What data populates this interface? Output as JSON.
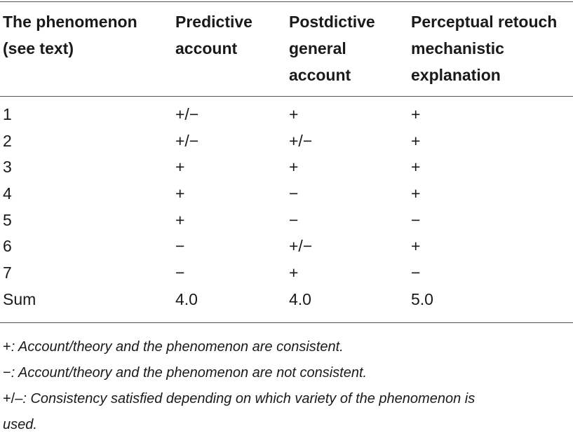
{
  "table": {
    "headers": [
      [
        "The phenomenon",
        "(see text)"
      ],
      [
        "Predictive",
        "account"
      ],
      [
        "Postdictive",
        "general",
        "account"
      ],
      [
        "Perceptual retouch",
        "mechanistic",
        "explanation"
      ]
    ],
    "rows": [
      [
        "1",
        "+/−",
        "+",
        "+"
      ],
      [
        "2",
        "+/−",
        "+/−",
        "+"
      ],
      [
        "3",
        "+",
        "+",
        "+"
      ],
      [
        "4",
        "+",
        "−",
        "+"
      ],
      [
        "5",
        "+",
        "−",
        "−"
      ],
      [
        "6",
        "−",
        "+/−",
        "+"
      ],
      [
        "7",
        "−",
        "+",
        "−"
      ],
      [
        "Sum",
        "4.0",
        "4.0",
        "5.0"
      ]
    ]
  },
  "footnotes": [
    {
      "symbol": "+",
      "text": ": Account/theory and the phenomenon are consistent."
    },
    {
      "symbol": "−",
      "text": ": Account/theory and the phenomenon are not consistent."
    },
    {
      "symbol": "+/–",
      "text": ": Consistency satisfied depending on which variety of the phenomenon is"
    },
    {
      "symbol": "",
      "text": "used."
    }
  ]
}
